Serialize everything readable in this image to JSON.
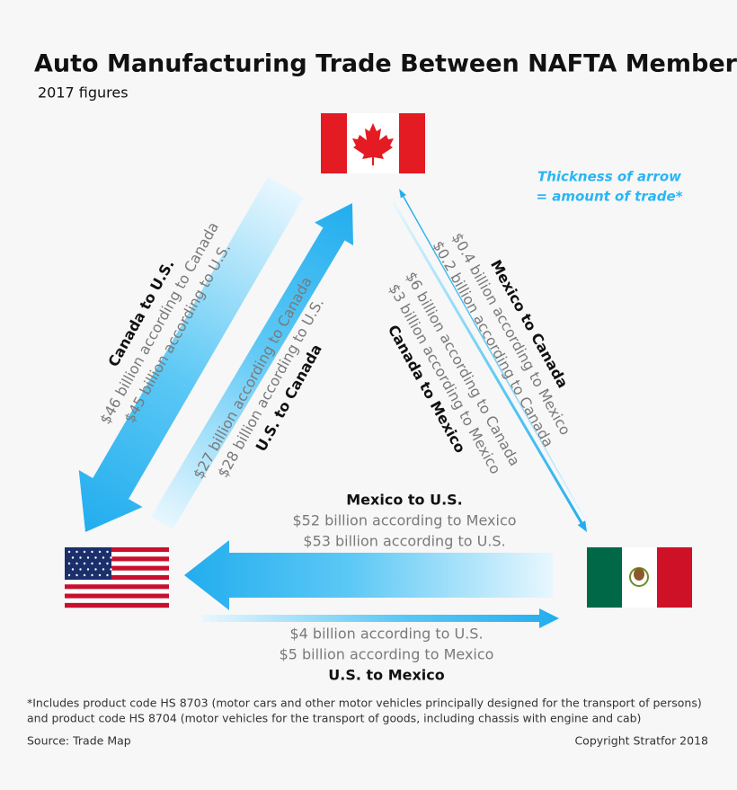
{
  "header": {
    "title": "Auto Manufacturing Trade Between NAFTA Members",
    "subtitle": "2017 figures"
  },
  "legend_note": [
    "Thickness of arrow",
    "= amount of trade*"
  ],
  "flows": [
    {
      "label": "Canada to U.S.",
      "lines": [
        "$46 billion according to Canada",
        "$45 billion according to U.S."
      ]
    },
    {
      "label": "U.S. to Canada",
      "lines": [
        "$27 billion according to Canada",
        "$28 billion according to U.S."
      ]
    },
    {
      "label": "Mexico to Canada",
      "lines": [
        "$0.4 billion according to Mexico",
        "$0.2 billion according to Canada"
      ]
    },
    {
      "label": "Canada to Mexico",
      "lines": [
        "$6 billion according to Canada",
        "$3 billion according to Mexico"
      ]
    },
    {
      "label": "Mexico to U.S.",
      "lines": [
        "$52 billion according to Mexico",
        "$53 billion according to U.S."
      ]
    },
    {
      "label": "U.S. to Mexico",
      "lines": [
        "$4 billion according to U.S.",
        "$5 billion according to Mexico"
      ]
    }
  ],
  "footnote": [
    "*Includes product code HS 8703 (motor cars and other motor vehicles principally designed for the transport of persons)",
    "and product code HS 8704 (motor vehicles for the transport of goods, including chassis with engine and cab)"
  ],
  "source": "Source: Trade Map",
  "copyright": "Copyright Stratfor 2018"
}
